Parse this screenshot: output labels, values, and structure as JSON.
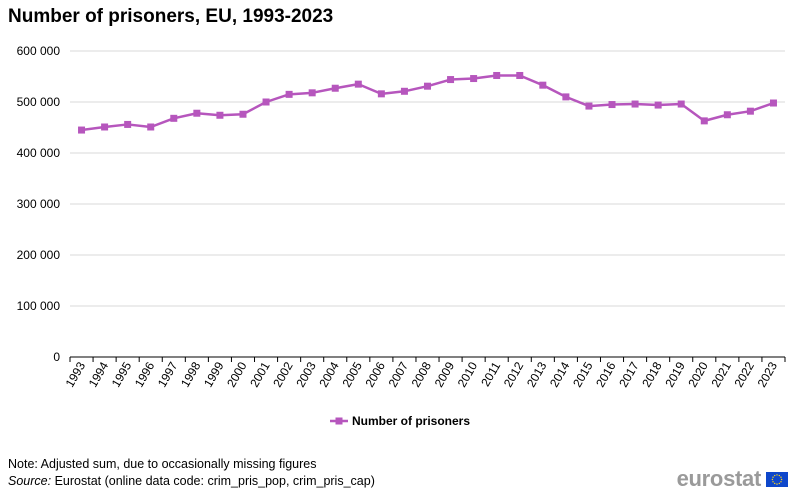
{
  "title": "Number of prisoners, EU, 1993-2023",
  "footnote": {
    "note": "Note: Adjusted sum, due to occasionally missing figures",
    "source_prefix": "Source:",
    "source_text": " Eurostat (online data code: crim_pris_pop, crim_pris_cap)"
  },
  "logo": {
    "text": "eurostat"
  },
  "colors": {
    "series": "#B656BD",
    "grid": "#d9d9d9",
    "axis": "#000000"
  },
  "chart_data": {
    "type": "line",
    "title": "Number of prisoners, EU, 1993-2023",
    "xlabel": "",
    "ylabel": "",
    "x": [
      "1993",
      "1994",
      "1995",
      "1996",
      "1997",
      "1998",
      "1999",
      "2000",
      "2001",
      "2002",
      "2003",
      "2004",
      "2005",
      "2006",
      "2007",
      "2008",
      "2009",
      "2010",
      "2011",
      "2012",
      "2013",
      "2014",
      "2015",
      "2016",
      "2017",
      "2018",
      "2019",
      "2020",
      "2021",
      "2022",
      "2023"
    ],
    "series": [
      {
        "name": "Number of prisoners",
        "values": [
          445000,
          451000,
          456000,
          451000,
          468000,
          478000,
          474000,
          476000,
          500000,
          515000,
          518000,
          527000,
          535000,
          516000,
          521000,
          531000,
          544000,
          546000,
          552000,
          552000,
          533000,
          510000,
          492000,
          495000,
          496000,
          494000,
          496000,
          463000,
          475000,
          482000,
          498000
        ]
      }
    ],
    "ylim": [
      0,
      600000
    ],
    "yticks": [
      0,
      100000,
      200000,
      300000,
      400000,
      500000,
      600000
    ],
    "ytick_labels": [
      "0",
      "100 000",
      "200 000",
      "300 000",
      "400 000",
      "500 000",
      "600 000"
    ],
    "grid": true,
    "legend_position": "bottom-center"
  }
}
